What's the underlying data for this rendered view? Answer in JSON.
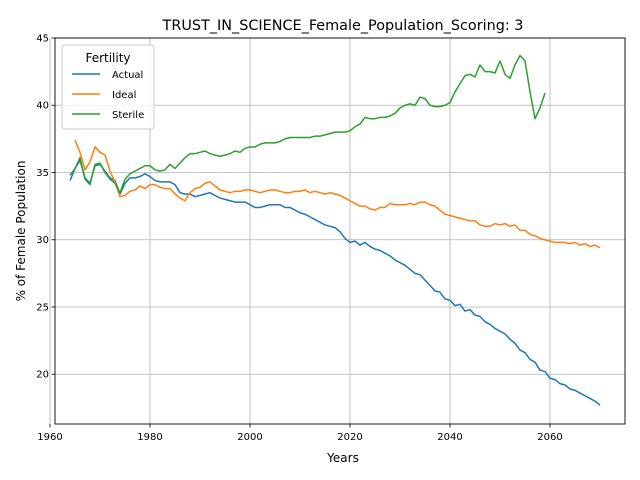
{
  "chart_data": {
    "type": "line",
    "title": "TRUST_IN_SCIENCE_Female_Population_Scoring: 3",
    "xlabel": "Years",
    "ylabel": "% of Female Population",
    "xlim": [
      1961,
      2075
    ],
    "ylim": [
      16.3,
      45
    ],
    "x_ticks": [
      1960,
      1980,
      2000,
      2020,
      2040,
      2060
    ],
    "y_ticks": [
      20,
      25,
      30,
      35,
      40,
      45
    ],
    "grid": true,
    "legend": {
      "title": "Fertility",
      "placement": "top-left"
    },
    "series": [
      {
        "name": "Actual",
        "color": "#1f77b4",
        "points": [
          [
            1964,
            34.4
          ],
          [
            1965,
            35.3
          ],
          [
            1966,
            35.9
          ],
          [
            1967,
            34.6
          ],
          [
            1968,
            34.2
          ],
          [
            1969,
            35.5
          ],
          [
            1970,
            35.6
          ],
          [
            1971,
            35.1
          ],
          [
            1972,
            34.6
          ],
          [
            1973,
            34.4
          ],
          [
            1974,
            33.4
          ],
          [
            1975,
            34.2
          ],
          [
            1976,
            34.6
          ],
          [
            1977,
            34.6
          ],
          [
            1978,
            34.7
          ],
          [
            1979,
            34.9
          ],
          [
            1980,
            34.7
          ],
          [
            1981,
            34.4
          ],
          [
            1982,
            34.3
          ],
          [
            1983,
            34.3
          ],
          [
            1984,
            34.3
          ],
          [
            1985,
            34.1
          ],
          [
            1986,
            33.5
          ],
          [
            1987,
            33.4
          ],
          [
            1988,
            33.4
          ],
          [
            1989,
            33.2
          ],
          [
            1990,
            33.3
          ],
          [
            1991,
            33.4
          ],
          [
            1992,
            33.5
          ],
          [
            1993,
            33.3
          ],
          [
            1994,
            33.1
          ],
          [
            1995,
            33.0
          ],
          [
            1996,
            32.9
          ],
          [
            1997,
            32.8
          ],
          [
            1998,
            32.8
          ],
          [
            1999,
            32.8
          ],
          [
            2000,
            32.6
          ],
          [
            2001,
            32.4
          ],
          [
            2002,
            32.4
          ],
          [
            2003,
            32.5
          ],
          [
            2004,
            32.6
          ],
          [
            2005,
            32.6
          ],
          [
            2006,
            32.6
          ],
          [
            2007,
            32.4
          ],
          [
            2008,
            32.4
          ],
          [
            2009,
            32.2
          ],
          [
            2010,
            32.0
          ],
          [
            2011,
            31.9
          ],
          [
            2012,
            31.7
          ],
          [
            2013,
            31.5
          ],
          [
            2014,
            31.3
          ],
          [
            2015,
            31.1
          ],
          [
            2016,
            31.0
          ],
          [
            2017,
            30.9
          ],
          [
            2018,
            30.6
          ],
          [
            2019,
            30.1
          ],
          [
            2020,
            29.8
          ],
          [
            2021,
            29.9
          ],
          [
            2022,
            29.6
          ],
          [
            2023,
            29.8
          ],
          [
            2024,
            29.5
          ],
          [
            2025,
            29.3
          ],
          [
            2026,
            29.2
          ],
          [
            2027,
            29.0
          ],
          [
            2028,
            28.8
          ],
          [
            2029,
            28.5
          ],
          [
            2030,
            28.3
          ],
          [
            2031,
            28.1
          ],
          [
            2032,
            27.8
          ],
          [
            2033,
            27.5
          ],
          [
            2034,
            27.4
          ],
          [
            2035,
            27.0
          ],
          [
            2036,
            26.6
          ],
          [
            2037,
            26.2
          ],
          [
            2038,
            26.1
          ],
          [
            2039,
            25.6
          ],
          [
            2040,
            25.5
          ],
          [
            2041,
            25.1
          ],
          [
            2042,
            25.2
          ],
          [
            2043,
            24.7
          ],
          [
            2044,
            24.8
          ],
          [
            2045,
            24.4
          ],
          [
            2046,
            24.3
          ],
          [
            2047,
            23.9
          ],
          [
            2048,
            23.7
          ],
          [
            2049,
            23.4
          ],
          [
            2050,
            23.2
          ],
          [
            2051,
            23.0
          ],
          [
            2052,
            22.6
          ],
          [
            2053,
            22.3
          ],
          [
            2054,
            21.8
          ],
          [
            2055,
            21.6
          ],
          [
            2056,
            21.1
          ],
          [
            2057,
            20.9
          ],
          [
            2058,
            20.3
          ],
          [
            2059,
            20.2
          ],
          [
            2060,
            19.7
          ],
          [
            2061,
            19.6
          ],
          [
            2062,
            19.3
          ],
          [
            2063,
            19.2
          ],
          [
            2064,
            18.9
          ],
          [
            2065,
            18.8
          ],
          [
            2066,
            18.6
          ],
          [
            2067,
            18.4
          ],
          [
            2068,
            18.2
          ],
          [
            2069,
            18.0
          ],
          [
            2070,
            17.7
          ]
        ]
      },
      {
        "name": "Ideal",
        "color": "#ff7f0e",
        "points": [
          [
            1965,
            37.4
          ],
          [
            1966,
            36.5
          ],
          [
            1967,
            35.2
          ],
          [
            1968,
            35.8
          ],
          [
            1969,
            36.9
          ],
          [
            1970,
            36.5
          ],
          [
            1971,
            36.3
          ],
          [
            1972,
            35.1
          ],
          [
            1973,
            34.3
          ],
          [
            1974,
            33.2
          ],
          [
            1975,
            33.3
          ],
          [
            1976,
            33.6
          ],
          [
            1977,
            33.7
          ],
          [
            1978,
            34.0
          ],
          [
            1979,
            33.8
          ],
          [
            1980,
            34.1
          ],
          [
            1981,
            34.1
          ],
          [
            1982,
            33.9
          ],
          [
            1983,
            33.8
          ],
          [
            1984,
            33.8
          ],
          [
            1985,
            33.4
          ],
          [
            1986,
            33.1
          ],
          [
            1987,
            32.9
          ],
          [
            1988,
            33.5
          ],
          [
            1989,
            33.8
          ],
          [
            1990,
            33.9
          ],
          [
            1991,
            34.2
          ],
          [
            1992,
            34.3
          ],
          [
            1993,
            34.0
          ],
          [
            1994,
            33.7
          ],
          [
            1995,
            33.6
          ],
          [
            1996,
            33.5
          ],
          [
            1997,
            33.6
          ],
          [
            1998,
            33.6
          ],
          [
            1999,
            33.7
          ],
          [
            2000,
            33.7
          ],
          [
            2001,
            33.6
          ],
          [
            2002,
            33.5
          ],
          [
            2003,
            33.6
          ],
          [
            2004,
            33.7
          ],
          [
            2005,
            33.7
          ],
          [
            2006,
            33.6
          ],
          [
            2007,
            33.5
          ],
          [
            2008,
            33.5
          ],
          [
            2009,
            33.6
          ],
          [
            2010,
            33.6
          ],
          [
            2011,
            33.7
          ],
          [
            2012,
            33.5
          ],
          [
            2013,
            33.6
          ],
          [
            2014,
            33.5
          ],
          [
            2015,
            33.4
          ],
          [
            2016,
            33.5
          ],
          [
            2017,
            33.4
          ],
          [
            2018,
            33.3
          ],
          [
            2019,
            33.1
          ],
          [
            2020,
            32.9
          ],
          [
            2021,
            32.7
          ],
          [
            2022,
            32.5
          ],
          [
            2023,
            32.5
          ],
          [
            2024,
            32.3
          ],
          [
            2025,
            32.2
          ],
          [
            2026,
            32.4
          ],
          [
            2027,
            32.4
          ],
          [
            2028,
            32.7
          ],
          [
            2029,
            32.6
          ],
          [
            2030,
            32.6
          ],
          [
            2031,
            32.6
          ],
          [
            2032,
            32.7
          ],
          [
            2033,
            32.6
          ],
          [
            2034,
            32.8
          ],
          [
            2035,
            32.8
          ],
          [
            2036,
            32.6
          ],
          [
            2037,
            32.5
          ],
          [
            2038,
            32.2
          ],
          [
            2039,
            31.9
          ],
          [
            2040,
            31.8
          ],
          [
            2041,
            31.7
          ],
          [
            2042,
            31.6
          ],
          [
            2043,
            31.5
          ],
          [
            2044,
            31.4
          ],
          [
            2045,
            31.4
          ],
          [
            2046,
            31.1
          ],
          [
            2047,
            31.0
          ],
          [
            2048,
            31.0
          ],
          [
            2049,
            31.2
          ],
          [
            2050,
            31.1
          ],
          [
            2051,
            31.2
          ],
          [
            2052,
            31.0
          ],
          [
            2053,
            31.1
          ],
          [
            2054,
            30.7
          ],
          [
            2055,
            30.7
          ],
          [
            2056,
            30.4
          ],
          [
            2057,
            30.3
          ],
          [
            2058,
            30.1
          ],
          [
            2059,
            30.0
          ],
          [
            2060,
            29.9
          ],
          [
            2061,
            29.8
          ],
          [
            2062,
            29.8
          ],
          [
            2063,
            29.8
          ],
          [
            2064,
            29.7
          ],
          [
            2065,
            29.8
          ],
          [
            2066,
            29.6
          ],
          [
            2067,
            29.7
          ],
          [
            2068,
            29.5
          ],
          [
            2069,
            29.6
          ],
          [
            2070,
            29.4
          ]
        ]
      },
      {
        "name": "Sterile",
        "color": "#2ca02c",
        "points": [
          [
            1964,
            34.8
          ],
          [
            1965,
            35.3
          ],
          [
            1966,
            36.1
          ],
          [
            1967,
            34.5
          ],
          [
            1968,
            34.1
          ],
          [
            1969,
            35.6
          ],
          [
            1970,
            35.7
          ],
          [
            1971,
            35.0
          ],
          [
            1972,
            34.5
          ],
          [
            1973,
            34.2
          ],
          [
            1974,
            33.5
          ],
          [
            1975,
            34.5
          ],
          [
            1976,
            34.9
          ],
          [
            1977,
            35.1
          ],
          [
            1978,
            35.3
          ],
          [
            1979,
            35.5
          ],
          [
            1980,
            35.5
          ],
          [
            1981,
            35.2
          ],
          [
            1982,
            35.1
          ],
          [
            1983,
            35.2
          ],
          [
            1984,
            35.6
          ],
          [
            1985,
            35.3
          ],
          [
            1986,
            35.7
          ],
          [
            1987,
            36.1
          ],
          [
            1988,
            36.4
          ],
          [
            1989,
            36.4
          ],
          [
            1990,
            36.5
          ],
          [
            1991,
            36.6
          ],
          [
            1992,
            36.4
          ],
          [
            1993,
            36.3
          ],
          [
            1994,
            36.2
          ],
          [
            1995,
            36.3
          ],
          [
            1996,
            36.4
          ],
          [
            1997,
            36.6
          ],
          [
            1998,
            36.5
          ],
          [
            1999,
            36.8
          ],
          [
            2000,
            36.9
          ],
          [
            2001,
            36.9
          ],
          [
            2002,
            37.1
          ],
          [
            2003,
            37.2
          ],
          [
            2004,
            37.2
          ],
          [
            2005,
            37.2
          ],
          [
            2006,
            37.3
          ],
          [
            2007,
            37.5
          ],
          [
            2008,
            37.6
          ],
          [
            2009,
            37.6
          ],
          [
            2010,
            37.6
          ],
          [
            2011,
            37.6
          ],
          [
            2012,
            37.6
          ],
          [
            2013,
            37.7
          ],
          [
            2014,
            37.7
          ],
          [
            2015,
            37.8
          ],
          [
            2016,
            37.9
          ],
          [
            2017,
            38.0
          ],
          [
            2018,
            38.0
          ],
          [
            2019,
            38.0
          ],
          [
            2020,
            38.1
          ],
          [
            2021,
            38.4
          ],
          [
            2022,
            38.6
          ],
          [
            2023,
            39.1
          ],
          [
            2024,
            39.0
          ],
          [
            2025,
            39.0
          ],
          [
            2026,
            39.1
          ],
          [
            2027,
            39.1
          ],
          [
            2028,
            39.2
          ],
          [
            2029,
            39.4
          ],
          [
            2030,
            39.8
          ],
          [
            2031,
            40.0
          ],
          [
            2032,
            40.1
          ],
          [
            2033,
            40.0
          ],
          [
            2034,
            40.6
          ],
          [
            2035,
            40.5
          ],
          [
            2036,
            40.0
          ],
          [
            2037,
            39.9
          ],
          [
            2038,
            39.9
          ],
          [
            2039,
            40.0
          ],
          [
            2040,
            40.2
          ],
          [
            2041,
            41.0
          ],
          [
            2042,
            41.6
          ],
          [
            2043,
            42.2
          ],
          [
            2044,
            42.3
          ],
          [
            2045,
            42.1
          ],
          [
            2046,
            43.0
          ],
          [
            2047,
            42.5
          ],
          [
            2048,
            42.5
          ],
          [
            2049,
            42.4
          ],
          [
            2050,
            43.3
          ],
          [
            2051,
            42.3
          ],
          [
            2052,
            42.0
          ],
          [
            2053,
            43.0
          ],
          [
            2054,
            43.7
          ],
          [
            2055,
            43.3
          ],
          [
            2056,
            41.0
          ],
          [
            2057,
            39.0
          ],
          [
            2058,
            39.8
          ],
          [
            2059,
            40.9
          ]
        ]
      }
    ]
  }
}
